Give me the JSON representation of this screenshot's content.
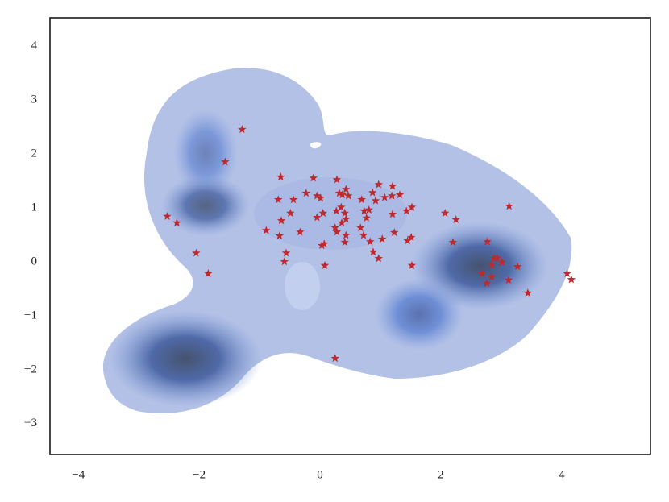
{
  "chart_data": {
    "type": "scatter",
    "color": "#c0282e",
    "marker": "star",
    "x": [
      -1.29,
      -1.57,
      -2.53,
      -2.37,
      -2.05,
      -1.85,
      -0.65,
      -0.11,
      0.28,
      -0.69,
      -0.44,
      -0.23,
      -0.05,
      0.01,
      -0.64,
      -0.49,
      -0.89,
      -0.67,
      -0.33,
      -0.05,
      0.05,
      -0.56,
      -0.59,
      0.03,
      0.07,
      0.08,
      0.32,
      0.37,
      0.43,
      0.47,
      0.35,
      0.27,
      0.41,
      0.43,
      0.36,
      0.25,
      0.28,
      0.43,
      0.41,
      0.69,
      0.73,
      0.67,
      0.72,
      0.83,
      0.88,
      0.97,
      1.03,
      0.87,
      0.97,
      0.92,
      1.07,
      1.2,
      1.19,
      1.32,
      1.2,
      1.43,
      1.52,
      1.23,
      1.45,
      1.51,
      1.52,
      0.81,
      0.77,
      2.07,
      2.25,
      2.2,
      3.13,
      2.77,
      2.88,
      2.93,
      2.84,
      3.01,
      2.68,
      2.76,
      2.84,
      3.12,
      3.27,
      3.44,
      4.09,
      4.16,
      0.25
    ],
    "values": [
      2.45,
      1.85,
      0.84,
      0.72,
      0.16,
      -0.22,
      1.57,
      1.55,
      1.52,
      1.15,
      1.15,
      1.27,
      1.22,
      1.18,
      0.76,
      0.9,
      0.58,
      0.48,
      0.55,
      0.82,
      0.9,
      0.16,
      0,
      0.3,
      0.33,
      -0.07,
      1.27,
      1.24,
      1.34,
      1.22,
      1.01,
      0.94,
      0.9,
      0.79,
      0.72,
      0.63,
      0.55,
      0.49,
      0.36,
      1.15,
      0.94,
      0.63,
      0.49,
      0.37,
      0.18,
      0.06,
      0.42,
      1.28,
      1.43,
      1.13,
      1.19,
      1.4,
      1.22,
      1.24,
      0.88,
      0.94,
      1.01,
      0.54,
      0.39,
      0.45,
      -0.07,
      0.96,
      0.81,
      0.9,
      0.78,
      0.36,
      1.03,
      0.37,
      0.06,
      0.07,
      -0.06,
      -0.01,
      -0.22,
      -0.4,
      -0.28,
      -0.34,
      -0.09,
      -0.58,
      -0.22,
      -0.33,
      -1.79
    ],
    "xlim": [
      -4.47,
      5.47
    ],
    "ylim": [
      -3.57,
      4.52
    ],
    "xticks": [
      {
        "value": -4,
        "label": "−4"
      },
      {
        "value": -2,
        "label": "−2"
      },
      0,
      2,
      4
    ],
    "yticks": [
      {
        "value": -3,
        "label": "−3"
      },
      {
        "value": -2,
        "label": "−2"
      },
      {
        "value": -1,
        "label": "−1"
      },
      0,
      1,
      2,
      3,
      4
    ],
    "grid": false
  }
}
